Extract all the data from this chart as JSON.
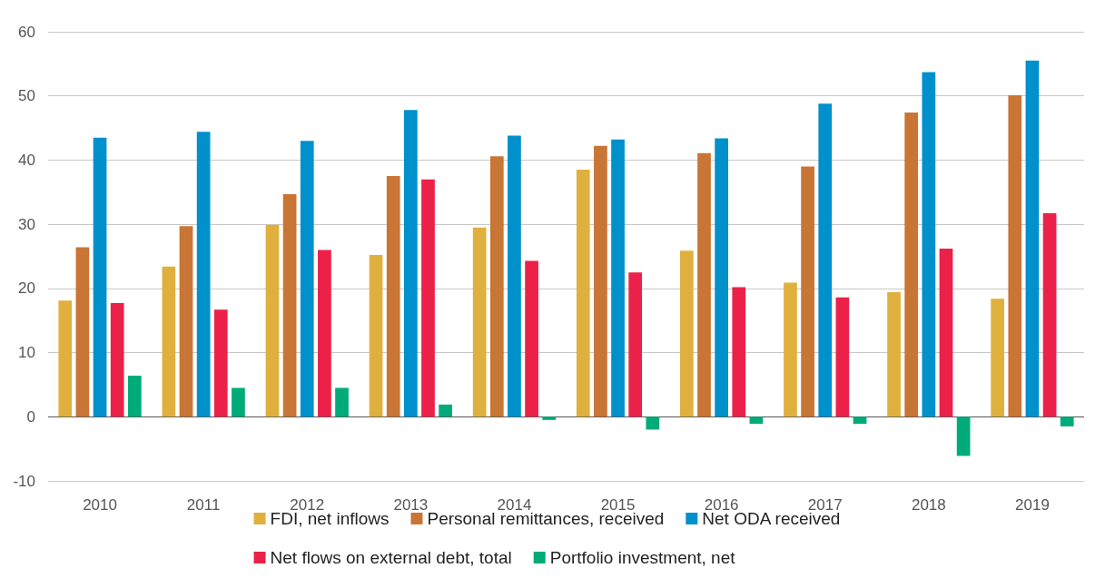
{
  "chart_data": {
    "type": "bar",
    "categories": [
      "2010",
      "2011",
      "2012",
      "2013",
      "2014",
      "2015",
      "2016",
      "2017",
      "2018",
      "2019"
    ],
    "series": [
      {
        "name": "FDI, net inflows",
        "color": "#e0b03f",
        "values": [
          18.1,
          23.4,
          29.9,
          25.2,
          29.5,
          38.5,
          25.9,
          20.9,
          19.4,
          18.4
        ]
      },
      {
        "name": "Personal remittances, received",
        "color": "#c97535",
        "values": [
          26.4,
          29.7,
          34.7,
          37.5,
          40.6,
          42.2,
          41.1,
          39.0,
          47.4,
          50.1
        ]
      },
      {
        "name": "Net ODA received",
        "color": "#0090cc",
        "values": [
          43.5,
          44.4,
          43.0,
          47.8,
          43.8,
          43.2,
          43.4,
          48.8,
          53.7,
          55.5
        ]
      },
      {
        "name": "Net flows on external debt, total",
        "color": "#ec2149",
        "values": [
          17.7,
          16.7,
          26.0,
          37.0,
          24.3,
          22.5,
          20.2,
          18.6,
          26.2,
          31.7
        ]
      },
      {
        "name": "Portfolio investment, net",
        "color": "#00ab7a",
        "values": [
          6.4,
          4.5,
          4.5,
          1.9,
          -0.5,
          -2.0,
          -1.1,
          -1.1,
          -6.1,
          -1.5
        ]
      }
    ],
    "ylim": [
      -10,
      60
    ],
    "yticks": [
      -10,
      0,
      10,
      20,
      30,
      40,
      50,
      60
    ],
    "grid": "y",
    "legend": "bottom"
  }
}
